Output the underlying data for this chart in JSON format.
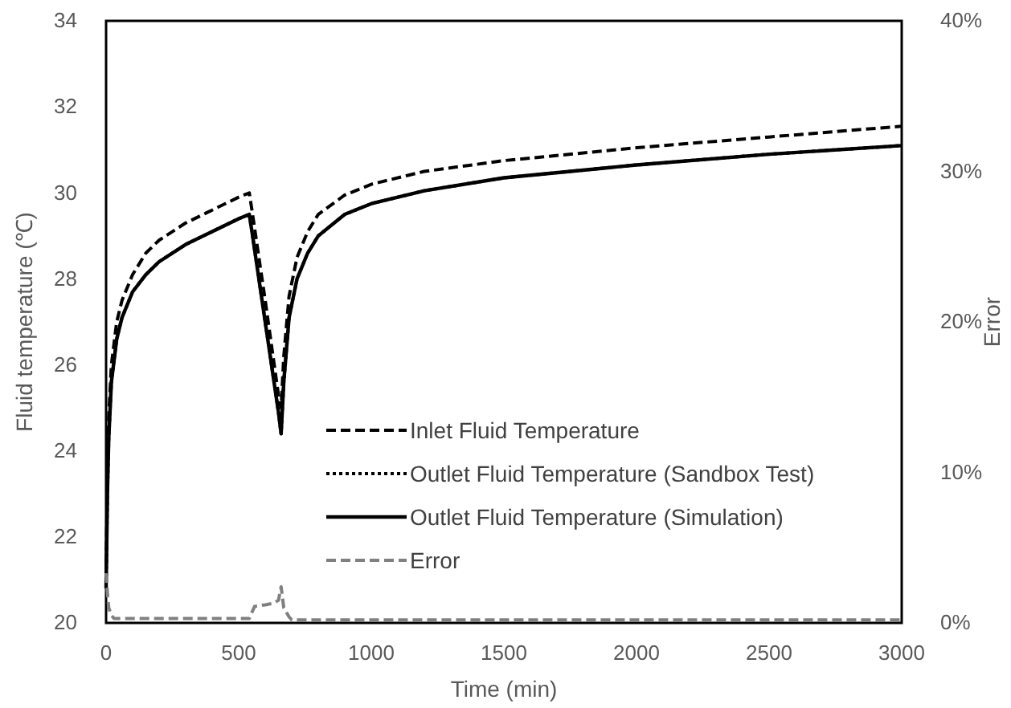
{
  "chart_data": {
    "type": "line",
    "xlabel": "Time (min)",
    "ylabel": "Fluid temperature (℃)",
    "y2label": "Error",
    "x": [
      0,
      5,
      10,
      20,
      40,
      60,
      100,
      150,
      200,
      300,
      400,
      500,
      540,
      550,
      600,
      650,
      660,
      670,
      690,
      720,
      760,
      800,
      900,
      1000,
      1200,
      1500,
      2000,
      2500,
      3000
    ],
    "xlim": [
      0,
      3000
    ],
    "xticks": [
      0,
      500,
      1000,
      1500,
      2000,
      2500,
      3000
    ],
    "ylim": [
      20,
      34
    ],
    "yticks": [
      20,
      22,
      24,
      26,
      28,
      30,
      32,
      34
    ],
    "y2lim": [
      0,
      40
    ],
    "y2ticks": [
      {
        "value": 0,
        "label": "0%"
      },
      {
        "value": 10,
        "label": "10%"
      },
      {
        "value": 20,
        "label": "20%"
      },
      {
        "value": 30,
        "label": "30%"
      },
      {
        "value": 40,
        "label": "40%"
      }
    ],
    "legend": "bottom right",
    "grid": false,
    "series": [
      {
        "name": "Inlet Fluid Temperature",
        "color": "#000000",
        "line_style": "dashed",
        "values": [
          21.0,
          23.5,
          24.8,
          26.0,
          27.0,
          27.5,
          28.1,
          28.6,
          28.9,
          29.3,
          29.6,
          29.9,
          30.0,
          29.6,
          27.5,
          25.3,
          25.0,
          26.2,
          27.6,
          28.5,
          29.1,
          29.5,
          29.95,
          30.2,
          30.5,
          30.75,
          31.05,
          31.3,
          31.55
        ]
      },
      {
        "name": "Outlet Fluid Temperature (Sandbox Test)",
        "color": "#000000",
        "line_style": "dotted",
        "values": [
          20.8,
          23.0,
          24.3,
          25.6,
          26.6,
          27.1,
          27.7,
          28.1,
          28.4,
          28.8,
          29.1,
          29.4,
          29.5,
          29.1,
          27.0,
          24.9,
          24.4,
          25.6,
          27.1,
          28.0,
          28.6,
          29.0,
          29.5,
          29.75,
          30.05,
          30.35,
          30.65,
          30.9,
          31.1
        ]
      },
      {
        "name": "Outlet Fluid Temperature (Simulation)",
        "color": "#000000",
        "line_style": "solid",
        "values": [
          20.8,
          23.0,
          24.3,
          25.6,
          26.6,
          27.1,
          27.7,
          28.1,
          28.4,
          28.8,
          29.1,
          29.4,
          29.5,
          29.1,
          27.0,
          24.9,
          24.4,
          25.6,
          27.1,
          28.0,
          28.6,
          29.0,
          29.5,
          29.75,
          30.05,
          30.35,
          30.65,
          30.9,
          31.1
        ]
      },
      {
        "name": "Error",
        "color": "#808080",
        "line_style": "dashed",
        "axis": "y2",
        "x": [
          0,
          5,
          10,
          20,
          30,
          100,
          200,
          300,
          400,
          500,
          540,
          560,
          600,
          630,
          650,
          660,
          670,
          690,
          700,
          800,
          1000,
          1500,
          2000,
          2500,
          3000
        ],
        "values": [
          3.3,
          2.0,
          1.0,
          0.5,
          0.3,
          0.3,
          0.3,
          0.3,
          0.3,
          0.3,
          0.3,
          1.1,
          1.2,
          1.3,
          1.5,
          2.4,
          1.0,
          0.4,
          0.2,
          0.2,
          0.2,
          0.2,
          0.2,
          0.2,
          0.2
        ]
      }
    ]
  }
}
